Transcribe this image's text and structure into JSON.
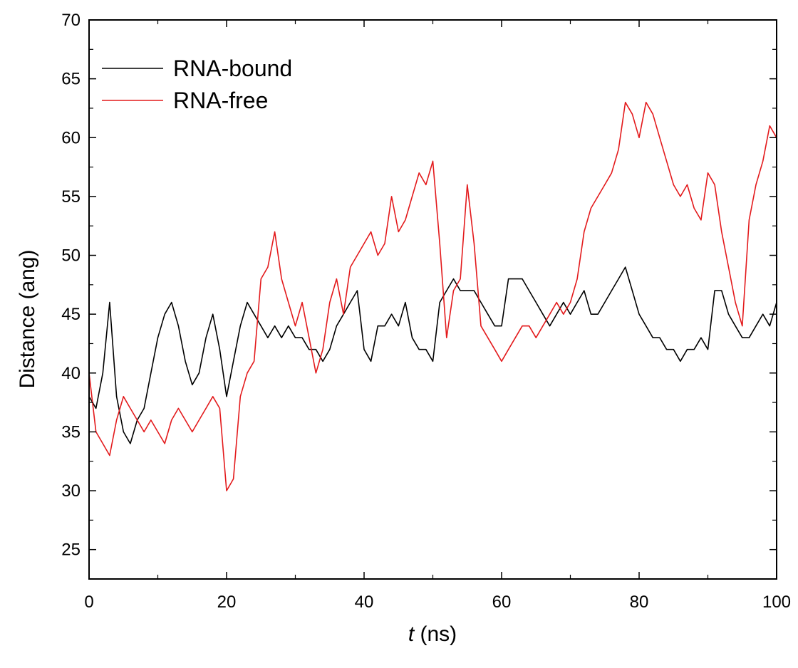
{
  "chart_data": {
    "type": "line",
    "title": "",
    "xlabel_var": "t",
    "xlabel_unit": " (ns)",
    "ylabel": "Distance (ang)",
    "xlim": [
      0,
      100
    ],
    "ylim": [
      22.5,
      70
    ],
    "xticks": [
      "0",
      "20",
      "40",
      "60",
      "80",
      "100"
    ],
    "yticks": [
      "25",
      "30",
      "35",
      "40",
      "45",
      "50",
      "55",
      "60",
      "65",
      "70"
    ],
    "grid": false,
    "legend_position": "top-left",
    "series": [
      {
        "name": "RNA-bound",
        "color": "#000000",
        "x": [
          0,
          1,
          2,
          3,
          4,
          5,
          6,
          7,
          8,
          9,
          10,
          11,
          12,
          13,
          14,
          15,
          16,
          17,
          18,
          19,
          20,
          21,
          22,
          23,
          24,
          25,
          26,
          27,
          28,
          29,
          30,
          31,
          32,
          33,
          34,
          35,
          36,
          37,
          38,
          39,
          40,
          41,
          42,
          43,
          44,
          45,
          46,
          47,
          48,
          49,
          50,
          51,
          52,
          53,
          54,
          55,
          56,
          57,
          58,
          59,
          60,
          61,
          62,
          63,
          64,
          65,
          66,
          67,
          68,
          69,
          70,
          71,
          72,
          73,
          74,
          75,
          76,
          77,
          78,
          79,
          80,
          81,
          82,
          83,
          84,
          85,
          86,
          87,
          88,
          89,
          90,
          91,
          92,
          93,
          94,
          95,
          96,
          97,
          98,
          99,
          100
        ],
        "y": [
          38,
          37,
          40,
          46,
          38,
          35,
          34,
          36,
          37,
          40,
          43,
          45,
          46,
          44,
          41,
          39,
          40,
          43,
          45,
          42,
          38,
          41,
          44,
          46,
          45,
          44,
          43,
          44,
          43,
          44,
          43,
          43,
          42,
          42,
          41,
          42,
          44,
          45,
          46,
          47,
          42,
          41,
          44,
          44,
          45,
          44,
          46,
          43,
          42,
          42,
          41,
          46,
          47,
          48,
          47,
          47,
          47,
          46,
          45,
          44,
          44,
          48,
          48,
          48,
          47,
          46,
          45,
          44,
          45,
          46,
          45,
          46,
          47,
          45,
          45,
          46,
          47,
          48,
          49,
          47,
          45,
          44,
          43,
          43,
          42,
          42,
          41,
          42,
          42,
          43,
          42,
          47,
          47,
          45,
          44,
          43,
          43,
          44,
          45,
          44,
          46
        ]
      },
      {
        "name": "RNA-free",
        "color": "#e31a1c",
        "x": [
          0,
          1,
          2,
          3,
          4,
          5,
          6,
          7,
          8,
          9,
          10,
          11,
          12,
          13,
          14,
          15,
          16,
          17,
          18,
          19,
          20,
          21,
          22,
          23,
          24,
          25,
          26,
          27,
          28,
          29,
          30,
          31,
          32,
          33,
          34,
          35,
          36,
          37,
          38,
          39,
          40,
          41,
          42,
          43,
          44,
          45,
          46,
          47,
          48,
          49,
          50,
          51,
          52,
          53,
          54,
          55,
          56,
          57,
          58,
          59,
          60,
          61,
          62,
          63,
          64,
          65,
          66,
          67,
          68,
          69,
          70,
          71,
          72,
          73,
          74,
          75,
          76,
          77,
          78,
          79,
          80,
          81,
          82,
          83,
          84,
          85,
          86,
          87,
          88,
          89,
          90,
          91,
          92,
          93,
          94,
          95,
          96,
          97,
          98,
          99,
          100
        ],
        "y": [
          40,
          35,
          34,
          33,
          36,
          38,
          37,
          36,
          35,
          36,
          35,
          34,
          36,
          37,
          36,
          35,
          36,
          37,
          38,
          37,
          30,
          31,
          38,
          40,
          41,
          48,
          49,
          52,
          48,
          46,
          44,
          46,
          43,
          40,
          42,
          46,
          48,
          45,
          49,
          50,
          51,
          52,
          50,
          51,
          55,
          52,
          53,
          55,
          57,
          56,
          58,
          51,
          43,
          47,
          48,
          56,
          51,
          44,
          43,
          42,
          41,
          42,
          43,
          44,
          44,
          43,
          44,
          45,
          46,
          45,
          46,
          48,
          52,
          54,
          55,
          56,
          57,
          59,
          63,
          62,
          60,
          63,
          62,
          60,
          58,
          56,
          55,
          56,
          54,
          53,
          57,
          56,
          52,
          49,
          46,
          44,
          53,
          56,
          58,
          61,
          60
        ]
      }
    ]
  }
}
